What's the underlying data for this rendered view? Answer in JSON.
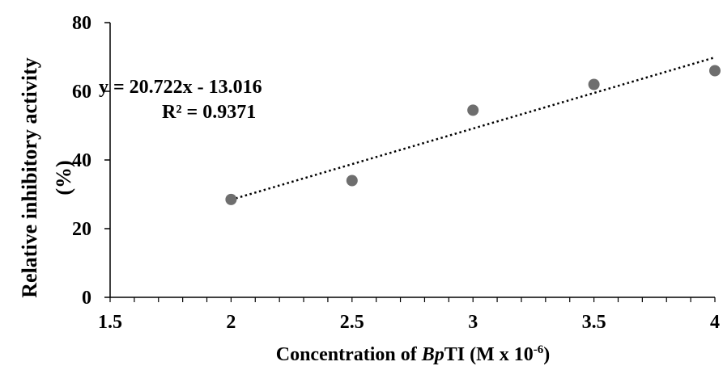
{
  "chart_data": {
    "type": "scatter",
    "xlabel_parts": [
      "Concentration of ",
      "Bp",
      "TI (M x 10",
      "-6",
      ")"
    ],
    "ylabel_line1": "Relative inhibitory activity",
    "ylabel_line2": "(%)",
    "xlim": [
      1.5,
      4
    ],
    "ylim": [
      0,
      80
    ],
    "x_ticks": [
      "1.5",
      "2",
      "2.5",
      "3",
      "3.5",
      "4"
    ],
    "y_ticks": [
      "0",
      "20",
      "40",
      "60",
      "80"
    ],
    "grid": false,
    "series": [
      {
        "x": [
          2,
          2.5,
          3,
          3.5,
          4
        ],
        "y": [
          28.5,
          34,
          54.5,
          62,
          66
        ],
        "color": "#6e6e6e"
      }
    ],
    "trendline": {
      "slope": 20.722,
      "intercept": -13.016,
      "x_range": [
        2,
        4
      ],
      "style": "dotted",
      "color": "#000000"
    },
    "annotations": [
      "y = 20.722x - 13.016",
      "R² = 0.9371"
    ]
  }
}
